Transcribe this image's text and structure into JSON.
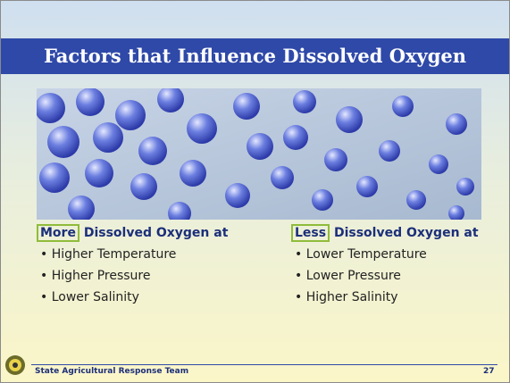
{
  "title": "Factors that Influence Dissolved Oxygen",
  "columns": [
    {
      "highlight": "More",
      "heading": "Dissolved Oxygen at",
      "items": [
        "Higher Temperature",
        "Higher Pressure",
        "Lower Salinity"
      ]
    },
    {
      "highlight": "Less",
      "heading": "Dissolved Oxygen at",
      "items": [
        "Lower Temperature",
        "Lower Pressure",
        "Higher Salinity"
      ]
    }
  ],
  "footer": {
    "org": "State Agricultural Response Team",
    "page": "27"
  }
}
